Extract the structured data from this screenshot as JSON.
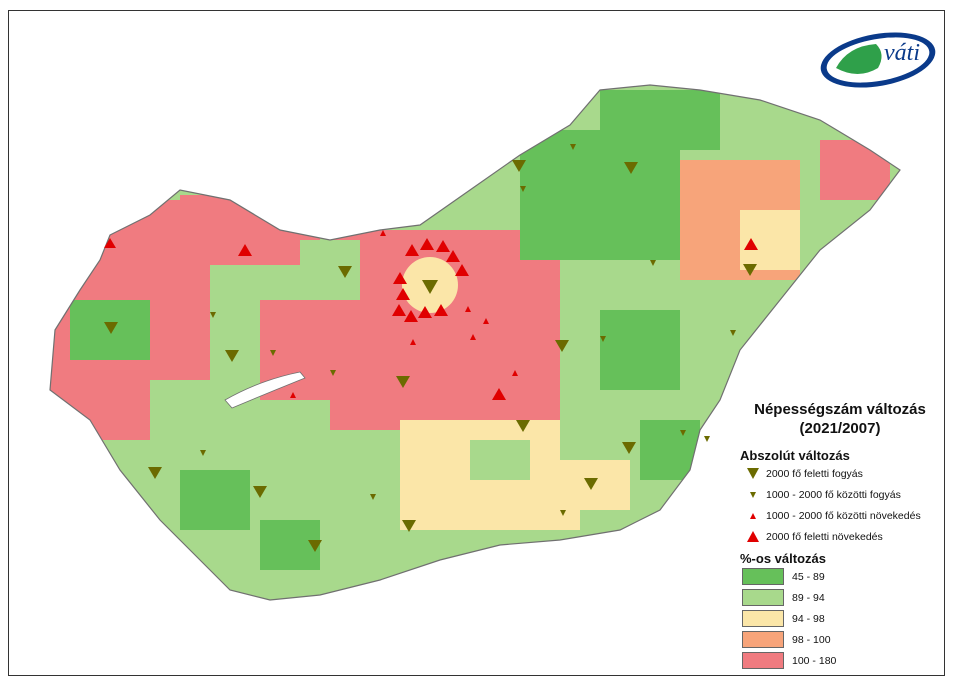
{
  "logo": {
    "text": "váti"
  },
  "legend": {
    "title_line1": "Népességszám változás",
    "title_line2": "(2021/2007)",
    "absolute_heading": "Abszolút változás",
    "absolute_items": [
      "2000 fő feletti fogyás",
      "1000 - 2000 fő közötti fogyás",
      "1000 - 2000 fő közötti növekedés",
      "2000 fő feletti növekedés"
    ],
    "percent_heading": "%-os változás",
    "percent_classes": [
      {
        "label": "45 - 89",
        "color": "#66c05a"
      },
      {
        "label": "89 - 94",
        "color": "#a8d98c"
      },
      {
        "label": "94 - 98",
        "color": "#fbe6a8"
      },
      {
        "label": "98 - 100",
        "color": "#f7a47a"
      },
      {
        "label": "100 - 180",
        "color": "#f07b80"
      }
    ]
  },
  "colors": {
    "decline_symbol": "#6b6b00",
    "growth_symbol": "#e00000",
    "border": "#707070"
  }
}
